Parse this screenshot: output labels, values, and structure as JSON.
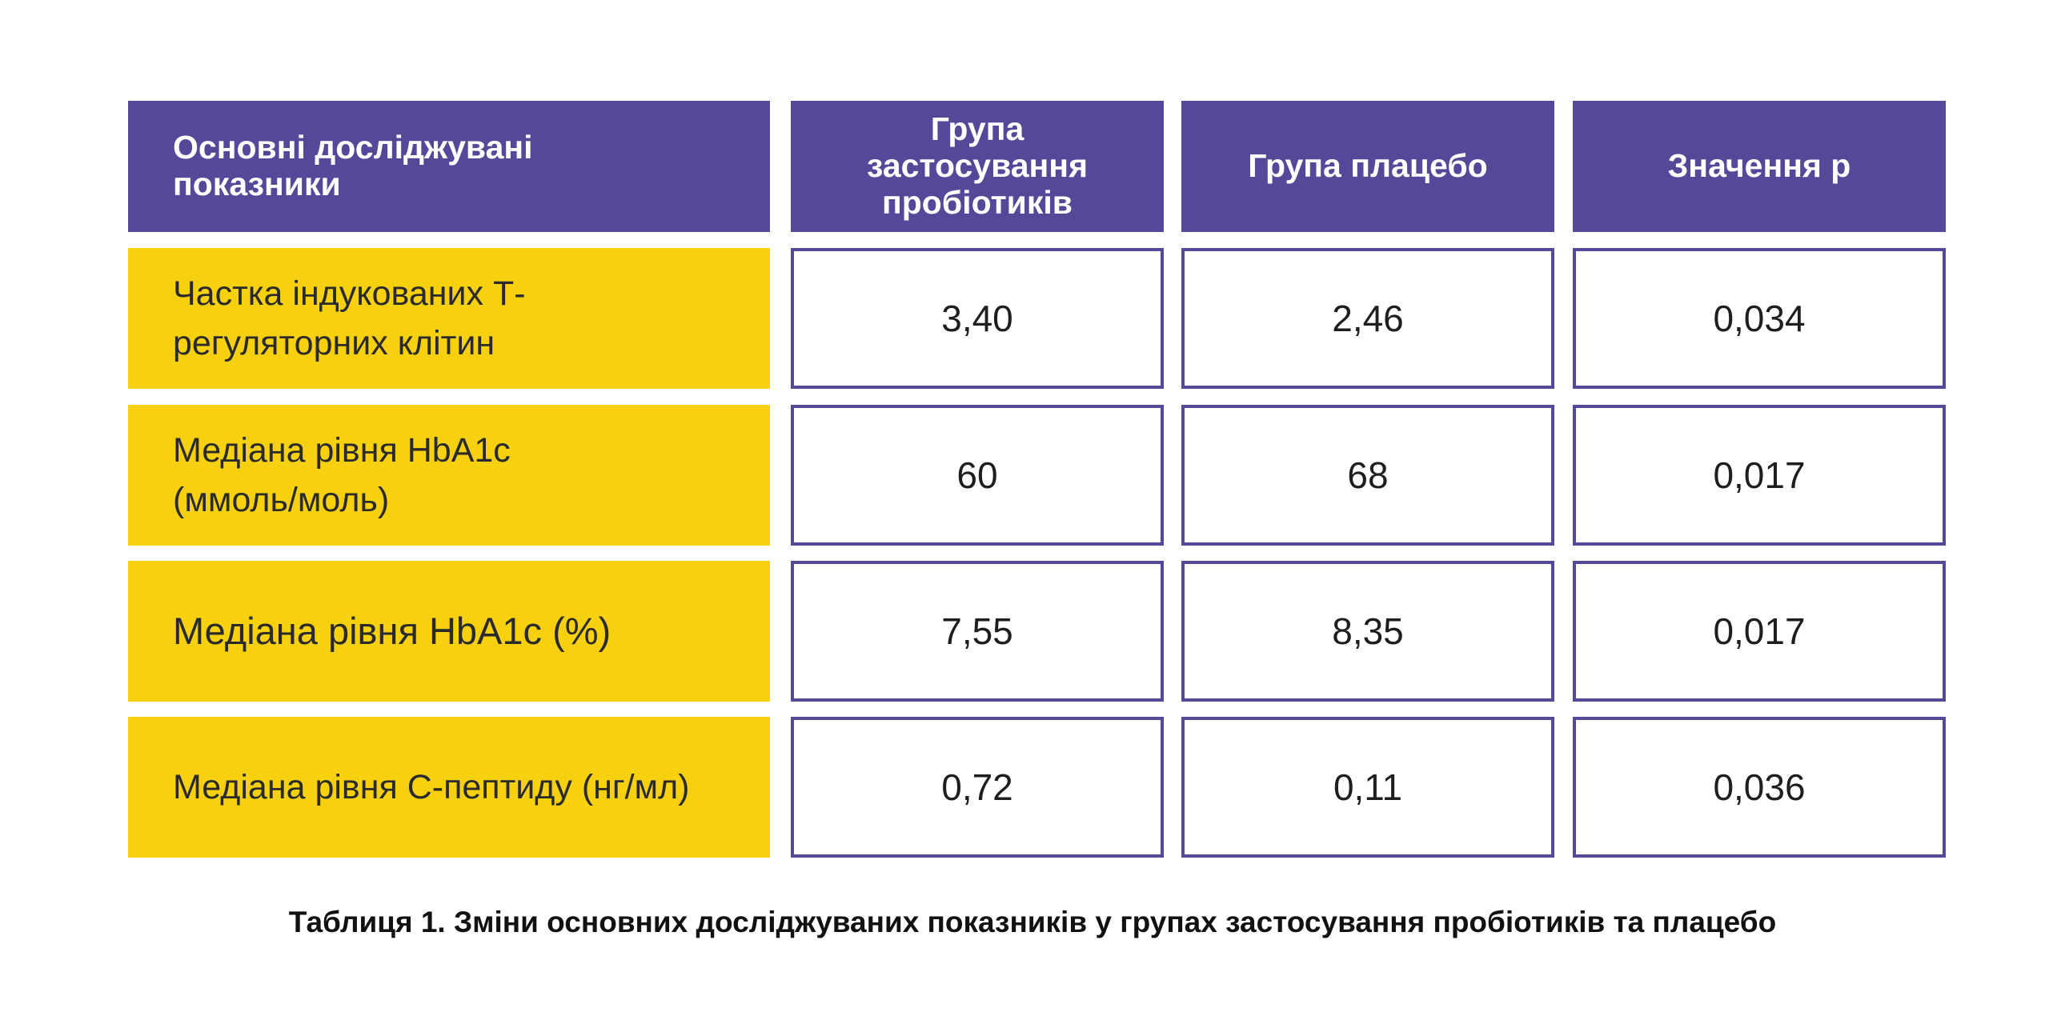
{
  "chart_data": {
    "type": "table",
    "columns": [
      "Основні досліджувані показники",
      "Група застосування пробіотиків",
      "Група плацебо",
      "Значення р"
    ],
    "rows": [
      {
        "label": "Частка індукованих Т-регуляторних клітин",
        "values": [
          "3,40",
          "2,46",
          "0,034"
        ]
      },
      {
        "label": "Медіана рівня HbA1c (ммоль/моль)",
        "values": [
          "60",
          "68",
          "0,017"
        ]
      },
      {
        "label": "Медіана рівня HbA1c (%)",
        "values": [
          "7,55",
          "8,35",
          "0,017"
        ]
      },
      {
        "label": "Медіана рівня С-пептиду (нг/мл)",
        "values": [
          "0,72",
          "0,11",
          "0,036"
        ]
      }
    ],
    "caption": "Таблиця 1. Зміни основних досліджуваних показників у групах застосування пробіотиків та плацебо"
  },
  "colors": {
    "header_bg": "#564898",
    "header_text": "#ffffff",
    "label_bg": "#f7d010",
    "cell_border": "#564898"
  }
}
